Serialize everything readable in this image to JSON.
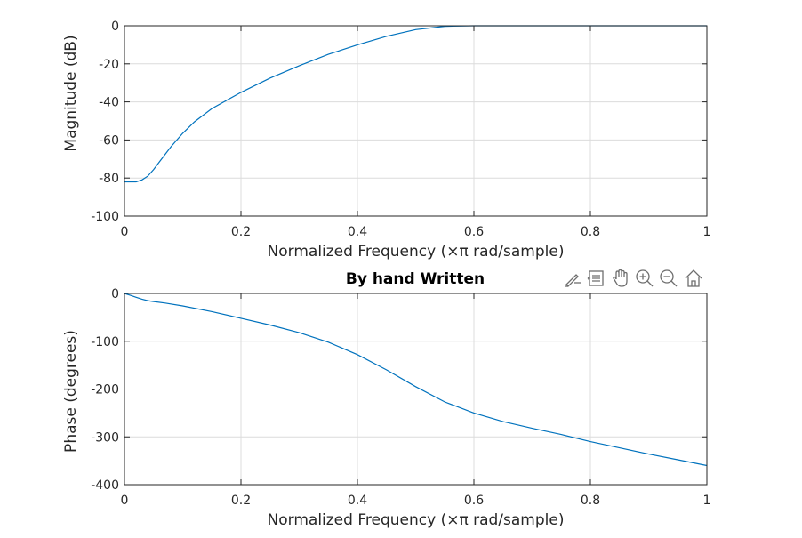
{
  "colors": {
    "line": "#0072BD",
    "grid": "#dcdcdc",
    "axes": "#262626",
    "background": "#ffffff",
    "toolbar_icon": "#6e6e6e"
  },
  "toolbar": {
    "icons": [
      "brush-icon",
      "datatip-icon",
      "pan-hand-icon",
      "zoom-in-icon",
      "zoom-out-icon",
      "home-icon"
    ]
  },
  "chart_data": [
    {
      "type": "line",
      "title": "",
      "xlabel_main": "Normalized Frequency",
      "xlabel_unit": "(×π rad/sample)",
      "ylabel": "Magnitude (dB)",
      "xlim": [
        0,
        1
      ],
      "ylim": [
        -100,
        0
      ],
      "xticks": [
        "0",
        "0.2",
        "0.4",
        "0.6",
        "0.8",
        "1"
      ],
      "yticks": [
        "0",
        "-20",
        "-40",
        "-60",
        "-80",
        "-100"
      ],
      "grid": true,
      "x": [
        0,
        0.01,
        0.02,
        0.03,
        0.04,
        0.05,
        0.06,
        0.07,
        0.08,
        0.1,
        0.12,
        0.15,
        0.2,
        0.25,
        0.3,
        0.35,
        0.4,
        0.45,
        0.5,
        0.55,
        0.6,
        0.7,
        0.8,
        0.9,
        1.0
      ],
      "y": [
        -82,
        -82,
        -82,
        -81,
        -79,
        -75.5,
        -71.5,
        -67.5,
        -63.5,
        -56.5,
        -50.5,
        -43.5,
        -35,
        -27.5,
        -21,
        -15,
        -10,
        -5.5,
        -2,
        -0.3,
        0,
        0,
        0,
        0,
        0
      ]
    },
    {
      "type": "line",
      "title": "By hand Written",
      "xlabel_main": "Normalized Frequency",
      "xlabel_unit": "(×π rad/sample)",
      "ylabel": "Phase (degrees)",
      "xlim": [
        0,
        1
      ],
      "ylim": [
        -400,
        0
      ],
      "xticks": [
        "0",
        "0.2",
        "0.4",
        "0.6",
        "0.8",
        "1"
      ],
      "yticks": [
        "0",
        "-100",
        "-200",
        "-300",
        "-400"
      ],
      "grid": true,
      "x": [
        0,
        0.01,
        0.02,
        0.03,
        0.04,
        0.05,
        0.07,
        0.1,
        0.15,
        0.2,
        0.25,
        0.3,
        0.35,
        0.4,
        0.45,
        0.5,
        0.55,
        0.6,
        0.65,
        0.7,
        0.75,
        0.8,
        0.85,
        0.9,
        0.95,
        1.0
      ],
      "y": [
        0,
        -4,
        -8,
        -12,
        -15,
        -17,
        -20,
        -26,
        -38,
        -52,
        -66,
        -82,
        -102,
        -128,
        -160,
        -195,
        -227,
        -250,
        -268,
        -282,
        -295,
        -310,
        -323,
        -336,
        -348,
        -360
      ]
    }
  ]
}
